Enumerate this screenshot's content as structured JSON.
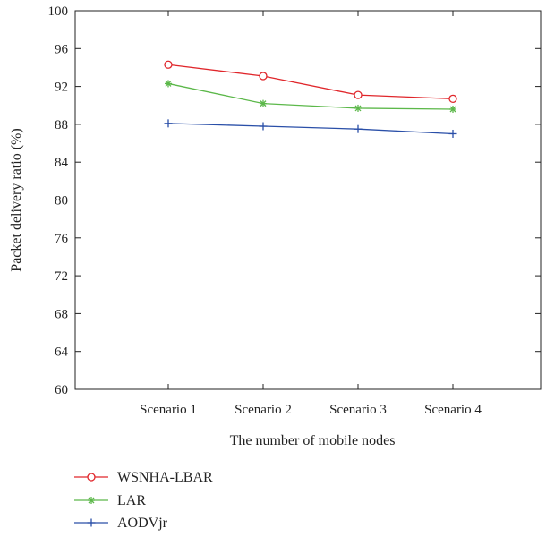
{
  "chart_data": {
    "type": "line",
    "title": "",
    "xlabel": "The number of mobile nodes",
    "ylabel": "Packet delivery ratio (%)",
    "categories": [
      "Scenario 1",
      "Scenario 2",
      "Scenario 3",
      "Scenario 4"
    ],
    "ylim": [
      60,
      100
    ],
    "yticks": [
      60,
      64,
      68,
      72,
      76,
      80,
      84,
      88,
      92,
      96,
      100
    ],
    "grid": false,
    "legend_position": "bottom-left",
    "series": [
      {
        "name": "WSNHA-LBAR",
        "values": [
          94.3,
          93.1,
          91.1,
          90.7
        ],
        "color": "#e0262b",
        "marker": "circle"
      },
      {
        "name": "LAR",
        "values": [
          92.3,
          90.2,
          89.7,
          89.6
        ],
        "color": "#5cb84a",
        "marker": "asterisk"
      },
      {
        "name": "AODVjr",
        "values": [
          88.1,
          87.8,
          87.5,
          87.0
        ],
        "color": "#2a4fa8",
        "marker": "plus"
      }
    ]
  }
}
